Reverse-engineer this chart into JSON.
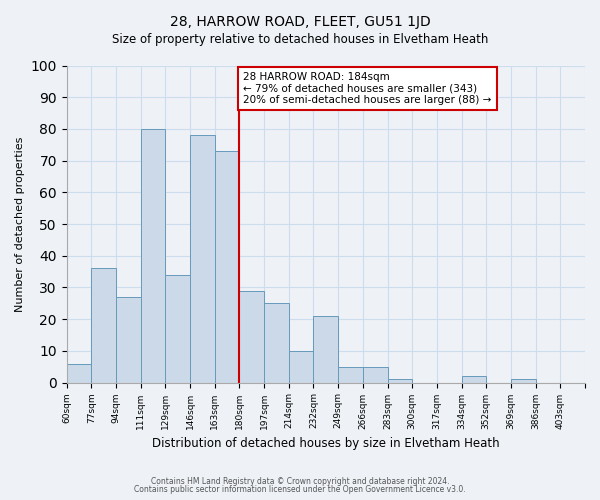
{
  "title": "28, HARROW ROAD, FLEET, GU51 1JD",
  "subtitle": "Size of property relative to detached houses in Elvetham Heath",
  "xlabel": "Distribution of detached houses by size in Elvetham Heath",
  "ylabel": "Number of detached properties",
  "bin_labels": [
    "60sqm",
    "77sqm",
    "94sqm",
    "111sqm",
    "129sqm",
    "146sqm",
    "163sqm",
    "180sqm",
    "197sqm",
    "214sqm",
    "232sqm",
    "249sqm",
    "266sqm",
    "283sqm",
    "300sqm",
    "317sqm",
    "334sqm",
    "352sqm",
    "369sqm",
    "386sqm",
    "403sqm"
  ],
  "bin_values": [
    6,
    36,
    27,
    80,
    34,
    78,
    73,
    29,
    25,
    10,
    21,
    5,
    5,
    1,
    0,
    0,
    2,
    0,
    1,
    0,
    0
  ],
  "bar_color": "#ccd9e8",
  "bar_edge_color": "#6699bb",
  "vline_color": "#cc0000",
  "vline_bin_index": 7,
  "annotation_text": "28 HARROW ROAD: 184sqm\n← 79% of detached houses are smaller (343)\n20% of semi-detached houses are larger (88) →",
  "annotation_box_facecolor": "#ffffff",
  "annotation_box_edgecolor": "#cc0000",
  "ylim": [
    0,
    100
  ],
  "yticks": [
    0,
    10,
    20,
    30,
    40,
    50,
    60,
    70,
    80,
    90,
    100
  ],
  "grid_color": "#ccddee",
  "background_color": "#eef2f7",
  "title_fontsize": 10,
  "subtitle_fontsize": 8.5,
  "xlabel_fontsize": 8.5,
  "ylabel_fontsize": 8,
  "tick_fontsize": 6.5,
  "annotation_fontsize": 7.5,
  "footnote1": "Contains HM Land Registry data © Crown copyright and database right 2024.",
  "footnote2": "Contains public sector information licensed under the Open Government Licence v3.0.",
  "footnote_fontsize": 5.5
}
